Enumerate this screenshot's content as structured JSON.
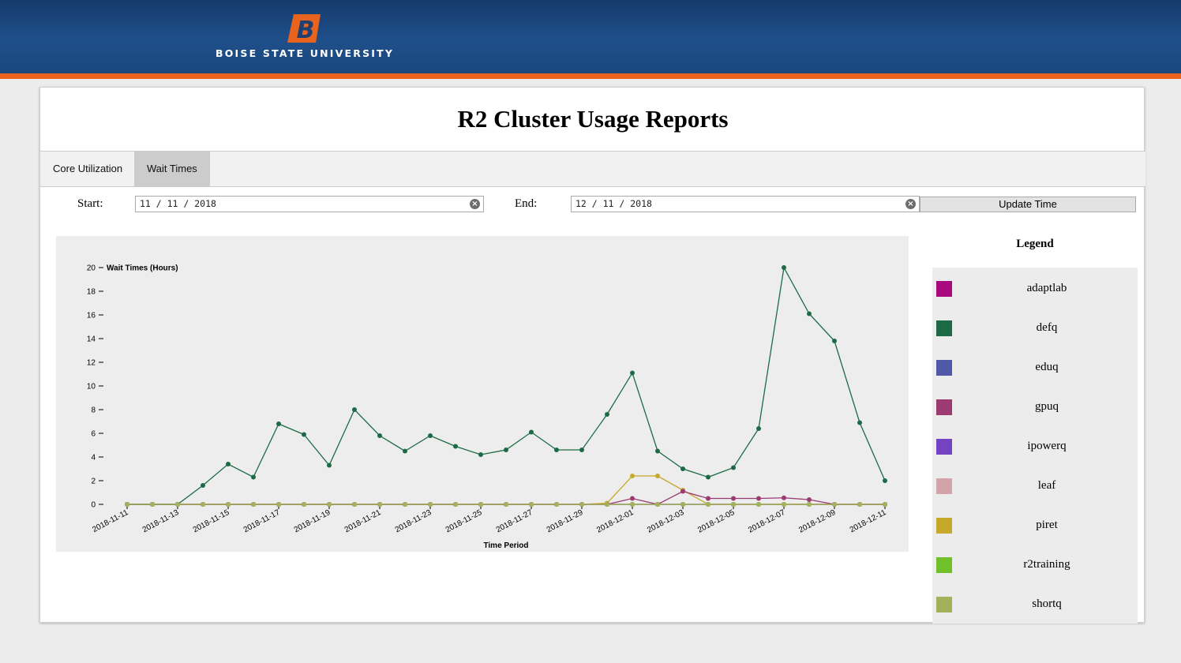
{
  "header": {
    "university": "BOISE STATE UNIVERSITY",
    "logo_letter": "B",
    "colors": {
      "blue": "#1f4f8a",
      "orange": "#e8641e"
    }
  },
  "page": {
    "title": "R2 Cluster Usage Reports"
  },
  "tabs": [
    {
      "label": "Core Utilization",
      "active": false
    },
    {
      "label": "Wait Times",
      "active": true
    }
  ],
  "filters": {
    "start_label": "Start:",
    "start_value": "11 / 11 / 2018",
    "end_label": "End:",
    "end_value": "12 / 11 / 2018",
    "update_label": "Update Time"
  },
  "legend": {
    "title": "Legend",
    "items": [
      {
        "name": "adaptlab",
        "color": "#a8097f"
      },
      {
        "name": "defq",
        "color": "#1c6b46"
      },
      {
        "name": "eduq",
        "color": "#4f59a6"
      },
      {
        "name": "gpuq",
        "color": "#9c3a72"
      },
      {
        "name": "ipowerq",
        "color": "#7443c1"
      },
      {
        "name": "leaf",
        "color": "#d2a3a8"
      },
      {
        "name": "piret",
        "color": "#c6a92a"
      },
      {
        "name": "r2training",
        "color": "#71c12c"
      },
      {
        "name": "shortq",
        "color": "#a3b25a"
      }
    ]
  },
  "chart_data": {
    "type": "line",
    "ylabel": "Wait Times (Hours)",
    "xlabel": "Time Period",
    "ylim": [
      0,
      20
    ],
    "yticks": [
      0,
      2,
      4,
      6,
      8,
      10,
      12,
      14,
      16,
      18,
      20
    ],
    "x": [
      "2018-11-11",
      "2018-11-12",
      "2018-11-13",
      "2018-11-14",
      "2018-11-15",
      "2018-11-16",
      "2018-11-17",
      "2018-11-18",
      "2018-11-19",
      "2018-11-20",
      "2018-11-21",
      "2018-11-22",
      "2018-11-23",
      "2018-11-24",
      "2018-11-25",
      "2018-11-26",
      "2018-11-27",
      "2018-11-28",
      "2018-11-29",
      "2018-11-30",
      "2018-12-01",
      "2018-12-02",
      "2018-12-03",
      "2018-12-04",
      "2018-12-05",
      "2018-12-06",
      "2018-12-07",
      "2018-12-08",
      "2018-12-09",
      "2018-12-10",
      "2018-12-11"
    ],
    "xticks": [
      "2018-11-11",
      "2018-11-13",
      "2018-11-15",
      "2018-11-17",
      "2018-11-19",
      "2018-11-21",
      "2018-11-23",
      "2018-11-25",
      "2018-11-27",
      "2018-11-29",
      "2018-12-01",
      "2018-12-03",
      "2018-12-05",
      "2018-12-07",
      "2018-12-09",
      "2018-12-11"
    ],
    "series": [
      {
        "name": "adaptlab",
        "values": [
          0,
          0,
          0,
          0,
          0,
          0,
          0,
          0,
          0,
          0,
          0,
          0,
          0,
          0,
          0,
          0,
          0,
          0,
          0,
          0,
          0,
          0,
          0,
          0,
          0,
          0,
          0,
          0,
          0,
          0,
          0
        ]
      },
      {
        "name": "eduq",
        "values": [
          0,
          0,
          0,
          0,
          0,
          0,
          0,
          0,
          0,
          0,
          0,
          0,
          0,
          0,
          0,
          0,
          0,
          0,
          0,
          0,
          0,
          0,
          0,
          0,
          0,
          0,
          0,
          0,
          0,
          0,
          0
        ]
      },
      {
        "name": "ipowerq",
        "values": [
          0,
          0,
          0,
          0,
          0,
          0,
          0,
          0,
          0,
          0,
          0,
          0,
          0,
          0,
          0,
          0,
          0,
          0,
          0,
          0,
          0,
          0,
          0,
          0,
          0,
          0,
          0,
          0,
          0,
          0,
          0
        ]
      },
      {
        "name": "leaf",
        "values": [
          0,
          0,
          0,
          0,
          0,
          0,
          0,
          0,
          0,
          0,
          0,
          0,
          0,
          0,
          0,
          0,
          0,
          0,
          0,
          0,
          0,
          0,
          0,
          0,
          0,
          0,
          0,
          0,
          0,
          0,
          0
        ]
      },
      {
        "name": "r2training",
        "values": [
          0,
          0,
          0,
          0,
          0,
          0,
          0,
          0,
          0,
          0,
          0,
          0,
          0,
          0,
          0,
          0,
          0,
          0,
          0,
          0,
          0,
          0,
          0,
          0,
          0,
          0,
          0,
          0,
          0,
          0,
          0
        ]
      },
      {
        "name": "piret",
        "values": [
          0,
          0,
          0,
          0,
          0,
          0,
          0,
          0,
          0,
          0,
          0,
          0,
          0,
          0,
          0,
          0,
          0,
          0,
          0,
          0.1,
          2.4,
          2.4,
          1.2,
          0,
          0,
          0,
          0,
          0,
          0,
          0,
          0
        ]
      },
      {
        "name": "gpuq",
        "values": [
          0,
          0,
          0,
          0,
          0,
          0,
          0,
          0,
          0,
          0,
          0,
          0,
          0,
          0,
          0,
          0,
          0,
          0,
          0,
          0,
          0.5,
          0,
          1.1,
          0.5,
          0.5,
          0.5,
          0.55,
          0.4,
          0,
          0,
          0
        ]
      },
      {
        "name": "defq",
        "values": [
          0,
          0,
          0,
          1.6,
          3.4,
          2.3,
          6.8,
          5.9,
          3.3,
          8.0,
          5.8,
          4.5,
          5.8,
          4.9,
          4.2,
          4.6,
          6.1,
          4.6,
          4.6,
          7.6,
          11.1,
          4.5,
          3.0,
          2.3,
          3.1,
          6.4,
          20.0,
          16.1,
          13.8,
          6.9,
          2.0
        ]
      },
      {
        "name": "shortq",
        "values": [
          0,
          0,
          0,
          0,
          0,
          0,
          0,
          0,
          0,
          0,
          0,
          0,
          0,
          0,
          0,
          0,
          0,
          0,
          0,
          0,
          0,
          0,
          0,
          0,
          0,
          0,
          0,
          0,
          0,
          0,
          0
        ]
      }
    ]
  }
}
